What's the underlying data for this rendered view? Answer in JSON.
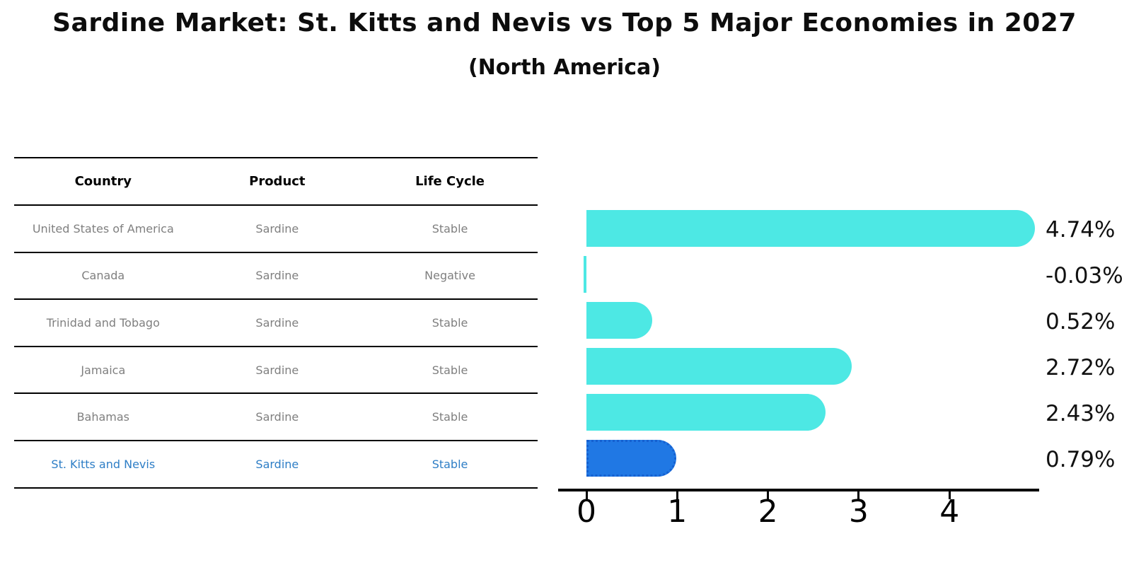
{
  "header": {
    "title": "Sardine Market: St. Kitts and Nevis vs Top 5 Major Economies in 2027",
    "subtitle": "(North America)"
  },
  "table": {
    "columns": [
      "Country",
      "Product",
      "Life Cycle"
    ],
    "rows": [
      {
        "country": "United States of America",
        "product": "Sardine",
        "life_cycle": "Stable"
      },
      {
        "country": "Canada",
        "product": "Sardine",
        "life_cycle": "Negative"
      },
      {
        "country": "Trinidad and Tobago",
        "product": "Sardine",
        "life_cycle": "Stable"
      },
      {
        "country": "Jamaica",
        "product": "Sardine",
        "life_cycle": "Stable"
      },
      {
        "country": "Bahamas",
        "product": "Sardine",
        "life_cycle": "Stable"
      },
      {
        "country": "St. Kitts and Nevis",
        "product": "Sardine",
        "life_cycle": "Stable"
      }
    ],
    "highlight_row_index": 5,
    "body_text_color": "#7f7f7f",
    "highlight_text_color": "#2E7EC6"
  },
  "chart_data": {
    "type": "bar",
    "orientation": "horizontal",
    "title": "",
    "categories": [
      "United States of America",
      "Canada",
      "Trinidad and Tobago",
      "Jamaica",
      "Bahamas",
      "St. Kitts and Nevis"
    ],
    "values": [
      4.74,
      -0.03,
      0.52,
      2.72,
      2.43,
      0.79
    ],
    "value_labels": [
      "4.74%",
      "-0.03%",
      "0.52%",
      "2.72%",
      "2.43%",
      "0.79%"
    ],
    "xticks": [
      "0",
      "1",
      "2",
      "3",
      "4"
    ],
    "xlim": [
      -0.3,
      5.0
    ],
    "grid": false,
    "legend": false,
    "bar_color": "#4DE8E4",
    "highlight_color": "#2078E4",
    "highlight_border_color": "#1560D0",
    "highlight_index": 5
  }
}
